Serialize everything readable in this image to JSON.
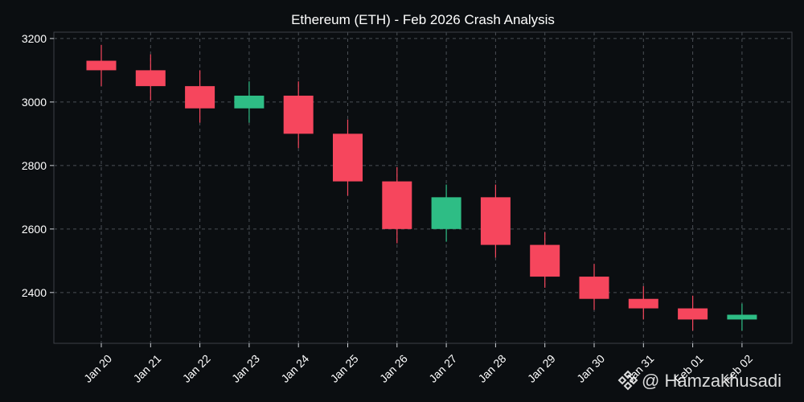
{
  "chart_data": {
    "type": "candlestick",
    "title": "Ethereum (ETH) - Feb 2026 Crash Analysis",
    "xlabel": "",
    "ylabel": "",
    "ylim": [
      2240,
      3220
    ],
    "yticks": [
      2400,
      2600,
      2800,
      3000,
      3200
    ],
    "grid": true,
    "categories": [
      "Jan 20",
      "Jan 21",
      "Jan 22",
      "Jan 23",
      "Jan 24",
      "Jan 25",
      "Jan 26",
      "Jan 27",
      "Jan 28",
      "Jan 29",
      "Jan 30",
      "Jan 31",
      "Feb 01",
      "Feb 02"
    ],
    "open": [
      3130,
      3100,
      3050,
      2980,
      3020,
      2900,
      2750,
      2600,
      2700,
      2550,
      2450,
      2380,
      2350,
      2315
    ],
    "high": [
      3180,
      3150,
      3100,
      3065,
      3065,
      2945,
      2795,
      2740,
      2740,
      2590,
      2490,
      2420,
      2390,
      2365
    ],
    "low": [
      3050,
      3005,
      2935,
      2935,
      2855,
      2705,
      2555,
      2560,
      2510,
      2415,
      2345,
      2315,
      2280,
      2280
    ],
    "close": [
      3100,
      3050,
      2980,
      3020,
      2900,
      2750,
      2600,
      2700,
      2550,
      2450,
      2380,
      2350,
      2315,
      2330
    ]
  },
  "colors": {
    "up": "#2ebd85",
    "down": "#f6465d",
    "background": "#0b0e11",
    "text": "#ffffff",
    "grid": "#4a4f55"
  },
  "watermark": {
    "text": "@ Hamzakhusadi",
    "icon": "binance-logo-icon"
  }
}
